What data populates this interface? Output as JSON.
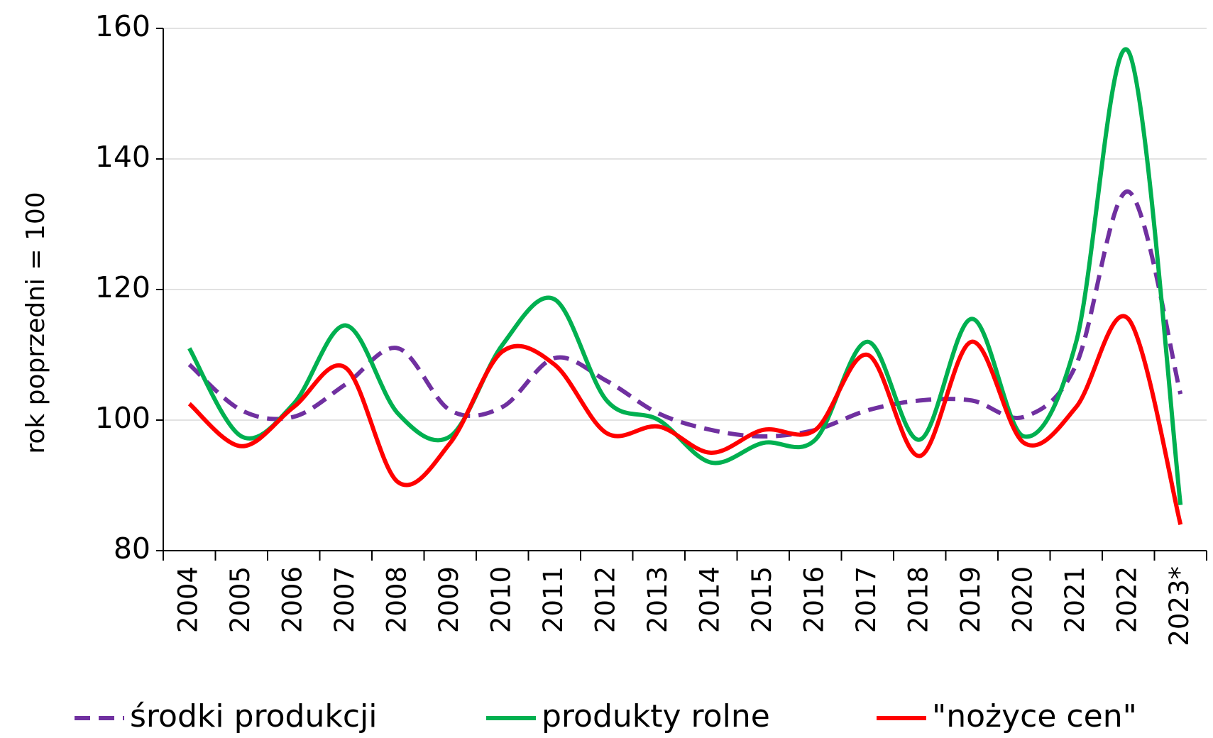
{
  "chart_data": {
    "type": "line",
    "y_label": "rok poprzedni = 100",
    "categories": [
      "2004",
      "2005",
      "2006",
      "2007",
      "2008",
      "2009",
      "2010",
      "2011",
      "2012",
      "2013",
      "2014",
      "2015",
      "2016",
      "2017",
      "2018",
      "2019",
      "2020",
      "2021",
      "2022",
      "2023*"
    ],
    "series": [
      {
        "name": "środki produkcji",
        "color": "#7030a0",
        "dash": true,
        "values": [
          108.5,
          101.5,
          100.5,
          105.5,
          111,
          101.5,
          102,
          109.5,
          106,
          101,
          98.5,
          97.5,
          98.5,
          101.5,
          103,
          103,
          100.5,
          108.5,
          135,
          104
        ]
      },
      {
        "name": "produkty rolne",
        "color": "#00b050",
        "dash": false,
        "values": [
          111,
          97.5,
          102.5,
          114.5,
          101,
          97.5,
          111.5,
          118.5,
          103,
          100,
          93.5,
          96.5,
          97,
          112,
          97,
          115.5,
          97.5,
          112,
          156.5,
          87
        ]
      },
      {
        "name": "\"nożyce cen\"",
        "color": "#ff0000",
        "dash": false,
        "values": [
          102.5,
          96,
          102,
          108,
          90.5,
          96.5,
          110.5,
          108.5,
          98,
          99,
          95,
          98.5,
          98.5,
          110,
          94.5,
          112,
          96.5,
          102,
          115.5,
          84
        ]
      }
    ],
    "ylim": [
      80,
      160
    ],
    "yticks": [
      80,
      100,
      120,
      140,
      160
    ],
    "grid": true,
    "smooth": true,
    "legend": "bottom"
  }
}
